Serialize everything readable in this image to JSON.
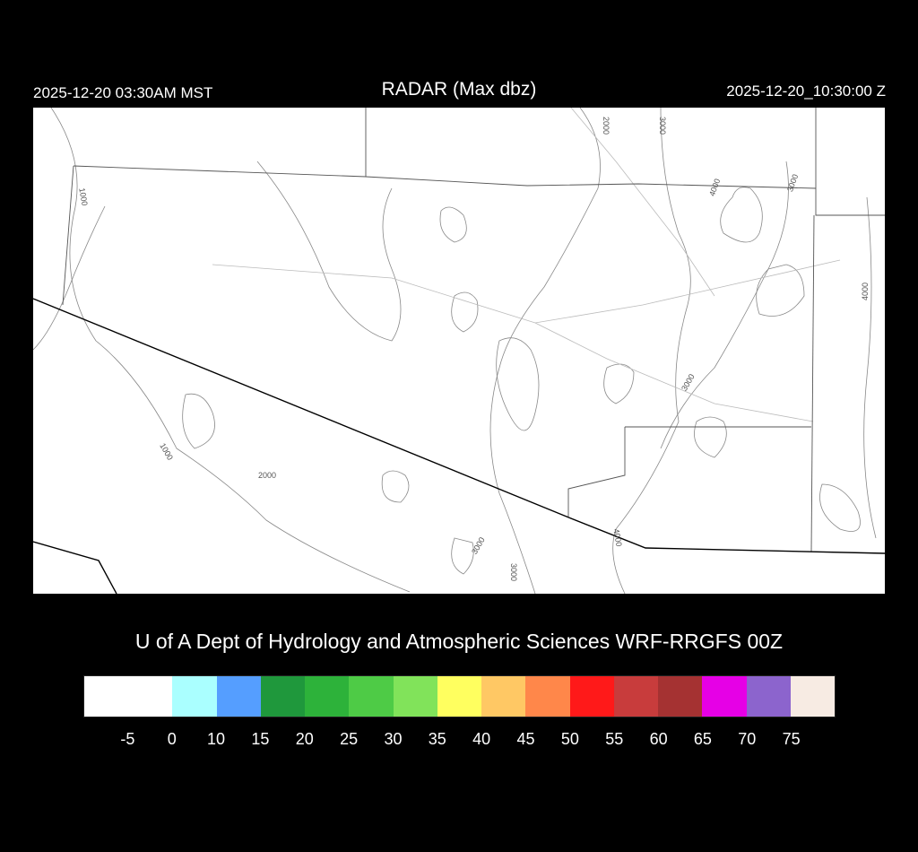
{
  "header": {
    "left_time": "2025-12-20 03:30AM MST",
    "title": "RADAR (Max dbz)",
    "right_time": "2025-12-20_10:30:00 Z"
  },
  "map": {
    "contour_labels": [
      "1000",
      "2000",
      "3000",
      "4000",
      "3000",
      "4000",
      "3000",
      "1000",
      "2000",
      "3000",
      "3000",
      "4000"
    ]
  },
  "credit": "U of A Dept of Hydrology and Atmospheric Sciences WRF-RRGFS 00Z",
  "colorbar": {
    "colors": [
      "#ffffff",
      "#aaffff",
      "#559eff",
      "#1f983c",
      "#2db23a",
      "#4ecb46",
      "#81e35a",
      "#ffff5f",
      "#ffc864",
      "#ff874a",
      "#ff1919",
      "#c83c3c",
      "#a53232",
      "#e600e6",
      "#8c64cd",
      "#f7ebe3"
    ],
    "labels": [
      "-5",
      "0",
      "10",
      "15",
      "20",
      "25",
      "30",
      "35",
      "40",
      "45",
      "50",
      "55",
      "60",
      "65",
      "70",
      "75"
    ]
  }
}
